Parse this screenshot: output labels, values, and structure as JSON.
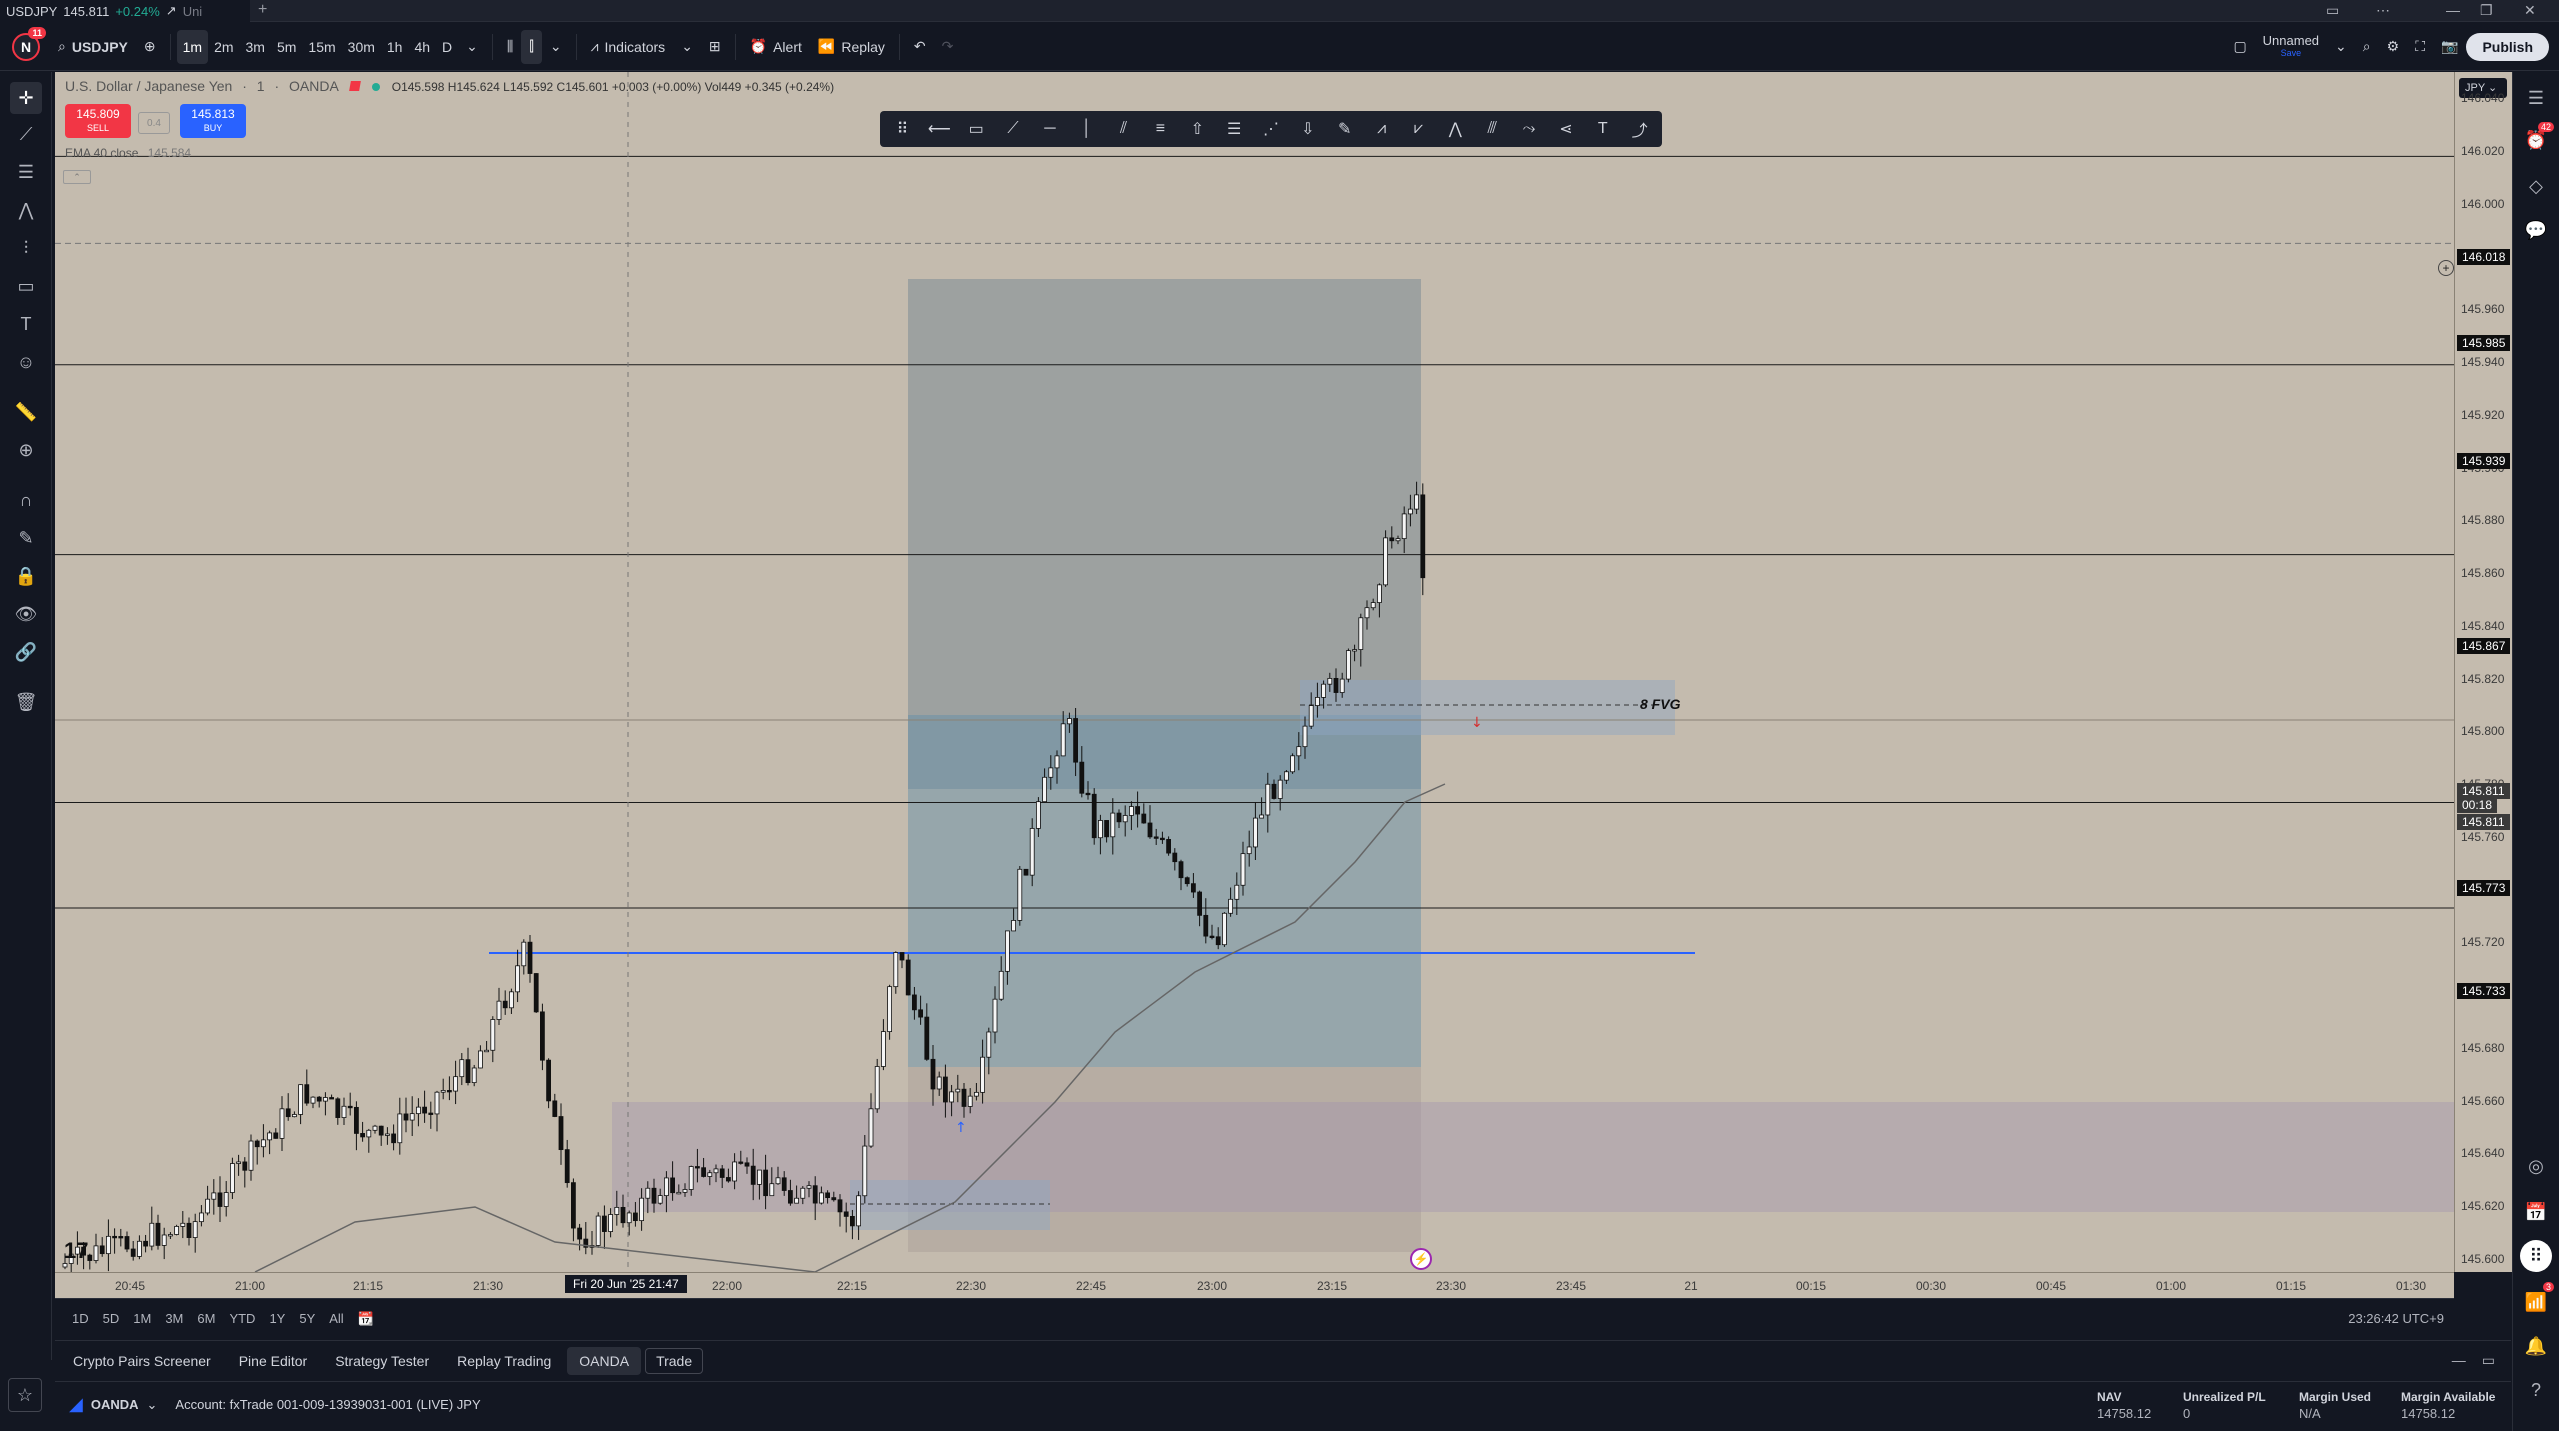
{
  "window_tab": {
    "symbol": "USDJPY",
    "price": "145.811",
    "change": "+0.24%",
    "trend": "↗",
    "suffix": "Uni"
  },
  "toolbar": {
    "logo_letter": "N",
    "logo_badge": "11",
    "symbol": "USDJPY",
    "intervals": [
      "1m",
      "2m",
      "3m",
      "5m",
      "15m",
      "30m",
      "1h",
      "4h",
      "D"
    ],
    "active_interval": "1m",
    "indicators_label": "Indicators",
    "alert_label": "Alert",
    "replay_label": "Replay",
    "layout_name": "Unnamed",
    "layout_status": "Save",
    "publish_label": "Publish"
  },
  "legend": {
    "title": "U.S. Dollar / Japanese Yen",
    "interval": "1",
    "broker": "OANDA",
    "ohlc": "O145.598 H145.624 L145.592 C145.601 +0.003 (+0.00%) Vol449 +0.345 (+0.24%)",
    "sell_price": "145.809",
    "sell_label": "SELL",
    "spread": "0.4",
    "buy_price": "145.813",
    "buy_label": "BUY",
    "ema_label": "EMA 40 close",
    "ema_value": "145.584"
  },
  "annotations": {
    "fvg_label": "8 FVG"
  },
  "price_axis": {
    "currency": "JPY",
    "ticks": [
      "146.040",
      "146.020",
      "146.000",
      "145.980",
      "145.960",
      "145.940",
      "145.920",
      "145.900",
      "145.880",
      "145.860",
      "145.840",
      "145.820",
      "145.800",
      "145.780",
      "145.760",
      "145.740",
      "145.720",
      "145.700",
      "145.680",
      "145.660",
      "145.640",
      "145.620",
      "145.600"
    ],
    "labels": [
      {
        "value": "146.018"
      },
      {
        "value": "145.985"
      },
      {
        "value": "145.939"
      },
      {
        "value": "145.867"
      },
      {
        "value": "145.811"
      },
      {
        "value": "00:18"
      },
      {
        "value": "145.811"
      },
      {
        "value": "145.773"
      },
      {
        "value": "145.733"
      }
    ]
  },
  "time_axis": {
    "ticks": [
      "20:45",
      "21:00",
      "21:15",
      "21:30",
      "21:45",
      "22:00",
      "22:15",
      "22:30",
      "22:45",
      "23:00",
      "23:15",
      "23:30",
      "23:45",
      "21",
      "00:15",
      "00:30",
      "00:45",
      "01:00",
      "01:15",
      "01:30"
    ],
    "crosshair_date": "Fri 20 Jun '25   21:47"
  },
  "chart_data": {
    "type": "candlestick",
    "symbol": "USDJPY",
    "interval": "1m",
    "ylim": [
      145.595,
      146.05
    ],
    "ema_period": 40,
    "horizontal_levels": [
      146.018,
      145.939,
      145.867,
      145.773,
      145.733
    ],
    "dashed_level": 145.985,
    "blue_level": 145.719,
    "last_price": 145.811
  },
  "range_bar": {
    "ranges": [
      "1D",
      "5D",
      "1M",
      "3M",
      "6M",
      "YTD",
      "1Y",
      "5Y",
      "All"
    ],
    "clock": "23:26:42 UTC+9"
  },
  "bottom_tabs": [
    "Crypto Pairs Screener",
    "Pine Editor",
    "Strategy Tester",
    "Replay Trading",
    "OANDA",
    "Trade"
  ],
  "account": {
    "broker": "OANDA",
    "account_text": "Account: fxTrade 001-009-13939031-001 (LIVE) JPY",
    "nav_label": "NAV",
    "nav_value": "14758.12",
    "upl_label": "Unrealized P/L",
    "upl_value": "0",
    "margin_used_label": "Margin Used",
    "margin_used_value": "N/A",
    "margin_avail_label": "Margin Available",
    "margin_avail_value": "14758.12"
  },
  "icons": {
    "right_badge_1": "42",
    "right_badge_2": "3"
  }
}
